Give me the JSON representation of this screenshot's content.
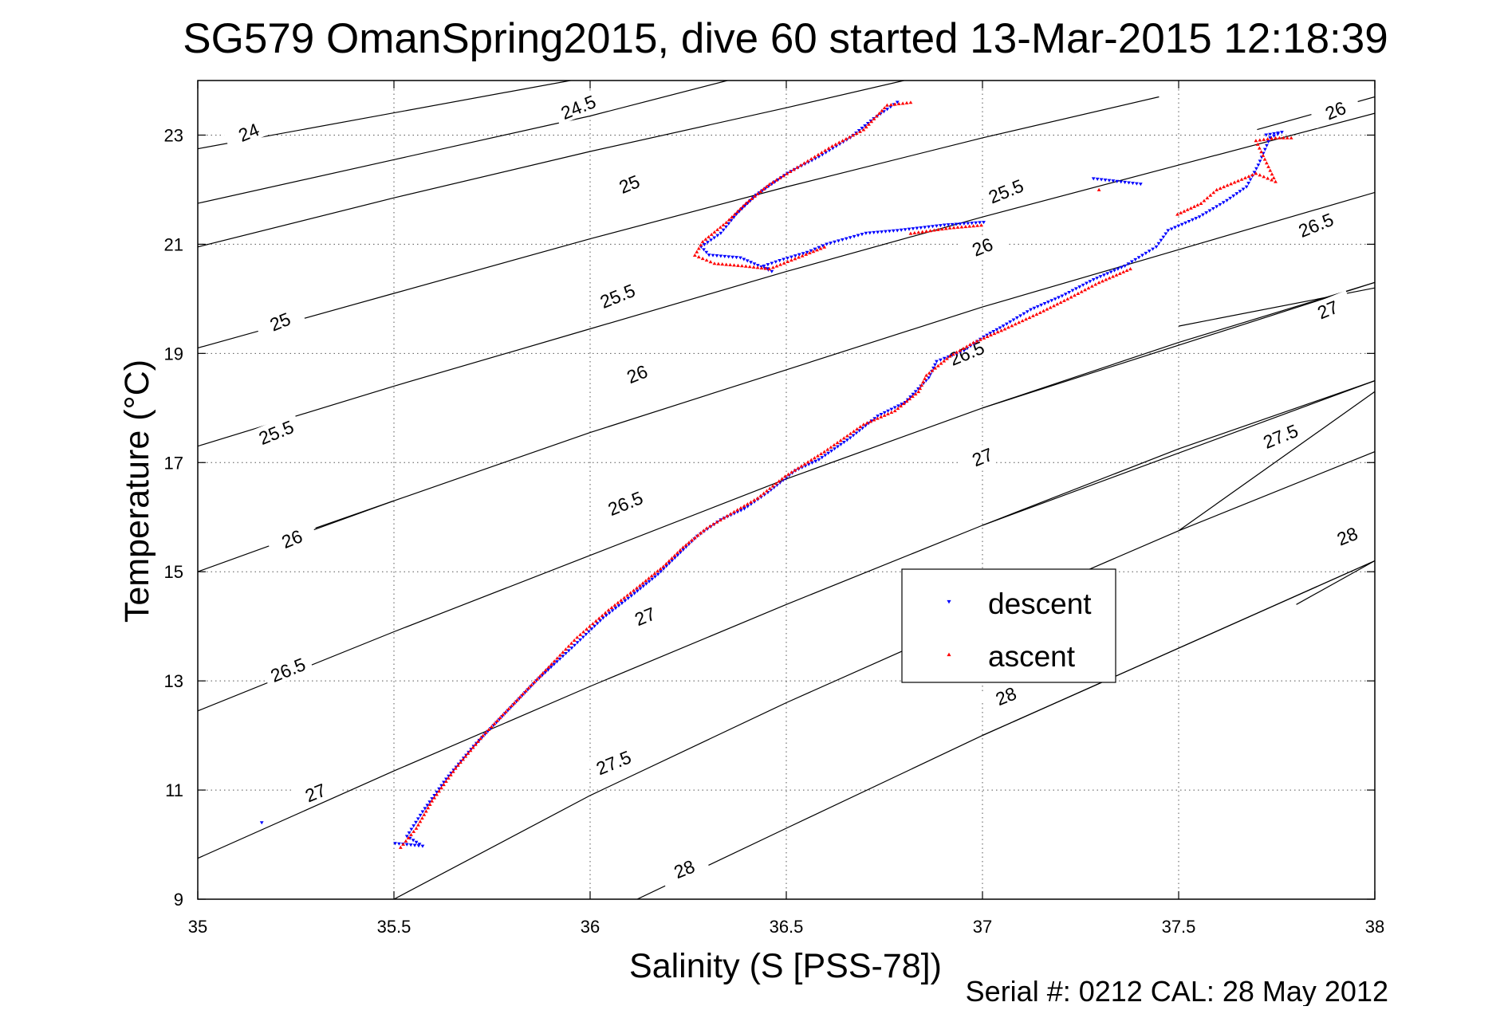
{
  "chart_data": {
    "type": "scatter",
    "title": "SG579 OmanSpring2015, dive 60 started 13-Mar-2015 12:18:39",
    "xlabel": "Salinity (S [PSS-78])",
    "ylabel": "Temperature (°C)",
    "footer": "Serial #: 0212  CAL: 28 May 2012",
    "xlim": [
      35,
      38
    ],
    "ylim": [
      9,
      24
    ],
    "x_ticks": [
      35,
      35.5,
      36,
      36.5,
      37,
      37.5,
      38
    ],
    "x_tick_labels": [
      "35",
      "35.5",
      "36",
      "36.5",
      "37",
      "37.5",
      "38"
    ],
    "y_ticks": [
      9,
      11,
      13,
      15,
      17,
      19,
      21,
      23
    ],
    "y_tick_labels": [
      "9",
      "11",
      "13",
      "15",
      "17",
      "19",
      "21",
      "23"
    ],
    "grid": true,
    "legend_position": "center-right",
    "density_contours": {
      "color": "#000000",
      "lines": [
        {
          "label": "24",
          "points": [
            [
              35.0,
              22.75
            ],
            [
              35.95,
              24.0
            ]
          ],
          "label_at": [
            35.13,
            23.05
          ]
        },
        {
          "label": "24.5",
          "points": [
            [
              35.0,
              21.75
            ],
            [
              35.5,
              22.55
            ],
            [
              36.0,
              23.35
            ],
            [
              36.35,
              24.0
            ]
          ],
          "label_at": [
            35.97,
            23.51
          ]
        },
        {
          "label": "25",
          "points": [
            [
              35.0,
              20.95
            ],
            [
              35.5,
              21.85
            ],
            [
              36.0,
              22.7
            ],
            [
              36.5,
              23.5
            ],
            [
              36.8,
              24.0
            ]
          ],
          "label_at": [
            36.1,
            22.1
          ]
        },
        {
          "label": "25",
          "points": [
            [
              35.0,
              19.1
            ],
            [
              35.5,
              20.1
            ],
            [
              36.0,
              21.1
            ],
            [
              36.5,
              22.05
            ],
            [
              37.0,
              22.95
            ],
            [
              37.45,
              23.7
            ]
          ],
          "label_at": [
            35.21,
            19.58
          ]
        },
        {
          "label": "25.5",
          "points": [
            [
              35.0,
              17.3
            ],
            [
              35.5,
              18.4
            ],
            [
              36.0,
              19.45
            ],
            [
              36.5,
              20.5
            ],
            [
              37.0,
              21.5
            ],
            [
              37.5,
              22.45
            ],
            [
              38.0,
              23.4
            ]
          ],
          "label_at": [
            36.07,
            20.05
          ]
        },
        {
          "label": "25.5",
          "points": [
            [
              35.0,
              17.3
            ],
            [
              35.5,
              18.4
            ],
            [
              36.0,
              19.45
            ],
            [
              36.5,
              20.5
            ],
            [
              37.0,
              21.5
            ],
            [
              37.5,
              22.45
            ],
            [
              38.0,
              23.4
            ]
          ],
          "label_at": [
            37.06,
            21.97
          ]
        },
        {
          "label": "25.5",
          "points": [
            [
              35.0,
              17.3
            ],
            [
              35.5,
              18.4
            ],
            [
              36.0,
              19.45
            ],
            [
              36.5,
              20.5
            ],
            [
              37.0,
              21.5
            ],
            [
              37.5,
              22.45
            ],
            [
              38.0,
              23.4
            ]
          ],
          "label_at": [
            35.2,
            17.55
          ]
        },
        {
          "label": "26",
          "points": [
            [
              35.0,
              15.0
            ],
            [
              35.5,
              16.3
            ],
            [
              36.0,
              17.55
            ],
            [
              36.5,
              18.7
            ],
            [
              37.0,
              19.85
            ],
            [
              37.5,
              20.9
            ],
            [
              38.0,
              21.95
            ]
          ],
          "label_at": [
            36.12,
            18.62
          ]
        },
        {
          "label": "26",
          "points": [
            [
              35.0,
              15.0
            ],
            [
              35.5,
              16.3
            ],
            [
              36.0,
              17.55
            ],
            [
              36.5,
              18.7
            ],
            [
              37.0,
              19.85
            ],
            [
              37.5,
              20.9
            ],
            [
              38.0,
              21.95
            ]
          ],
          "label_at": [
            35.24,
            15.6
          ]
        },
        {
          "label": "26",
          "points": [
            [
              35.3,
              15.8
            ],
            [
              35.5,
              16.3
            ]
          ],
          "label_at": [
            37.0,
            20.95
          ]
        },
        {
          "label": "26",
          "points": [
            [
              37.7,
              23.1
            ],
            [
              38.0,
              23.7
            ]
          ],
          "label_at": [
            37.9,
            23.45
          ]
        },
        {
          "label": "26.5",
          "points": [
            [
              35.0,
              12.45
            ],
            [
              35.5,
              13.9
            ],
            [
              36.0,
              15.3
            ],
            [
              36.5,
              16.7
            ],
            [
              37.0,
              18.0
            ],
            [
              37.5,
              19.2
            ],
            [
              38.0,
              20.3
            ]
          ],
          "label_at": [
            36.09,
            16.25
          ]
        },
        {
          "label": "26.5",
          "points": [
            [
              35.0,
              12.45
            ],
            [
              35.5,
              13.9
            ],
            [
              36.0,
              15.3
            ],
            [
              36.5,
              16.7
            ],
            [
              37.0,
              18.0
            ],
            [
              37.5,
              19.2
            ],
            [
              38.0,
              20.3
            ]
          ],
          "label_at": [
            35.23,
            13.2
          ]
        },
        {
          "label": "26.5",
          "points": [
            [
              35.0,
              12.45
            ],
            [
              35.5,
              13.9
            ],
            [
              36.0,
              15.3
            ],
            [
              36.5,
              16.7
            ],
            [
              37.0,
              18.0
            ],
            [
              37.5,
              19.2
            ],
            [
              38.0,
              20.3
            ]
          ],
          "label_at": [
            36.96,
            19.0
          ]
        },
        {
          "label": "26.5",
          "points": [
            [
              37.0,
              18.0
            ],
            [
              38.0,
              20.3
            ]
          ],
          "label_at": [
            37.85,
            21.35
          ]
        },
        {
          "label": "27",
          "points": [
            [
              35.0,
              9.75
            ],
            [
              35.5,
              11.35
            ],
            [
              36.0,
              12.9
            ],
            [
              36.5,
              14.4
            ],
            [
              37.0,
              15.85
            ],
            [
              37.5,
              17.25
            ],
            [
              38.0,
              18.5
            ]
          ],
          "label_at": [
            35.3,
            10.95
          ]
        },
        {
          "label": "27",
          "points": [
            [
              35.0,
              9.75
            ],
            [
              35.5,
              11.35
            ],
            [
              36.0,
              12.9
            ],
            [
              36.5,
              14.4
            ],
            [
              37.0,
              15.85
            ],
            [
              37.5,
              17.25
            ],
            [
              38.0,
              18.5
            ]
          ],
          "label_at": [
            36.14,
            14.18
          ]
        },
        {
          "label": "27",
          "points": [
            [
              37.0,
              15.85
            ],
            [
              38.0,
              18.5
            ]
          ],
          "label_at": [
            37.0,
            17.1
          ]
        },
        {
          "label": "27",
          "points": [
            [
              37.5,
              19.5
            ],
            [
              38.0,
              20.2
            ]
          ],
          "label_at": [
            37.88,
            19.8
          ]
        },
        {
          "label": "27.5",
          "points": [
            [
              35.5,
              9.0
            ],
            [
              36.0,
              10.9
            ],
            [
              36.5,
              12.6
            ],
            [
              37.0,
              14.2
            ],
            [
              37.5,
              15.75
            ],
            [
              38.0,
              17.2
            ]
          ],
          "label_at": [
            36.06,
            11.5
          ]
        },
        {
          "label": "27.5",
          "points": [
            [
              37.5,
              15.75
            ],
            [
              38.0,
              18.3
            ]
          ],
          "label_at": [
            37.76,
            17.48
          ]
        },
        {
          "label": "28",
          "points": [
            [
              36.12,
              9.0
            ],
            [
              36.5,
              10.3
            ],
            [
              37.0,
              12.0
            ],
            [
              37.5,
              13.6
            ],
            [
              38.0,
              15.2
            ]
          ],
          "label_at": [
            36.24,
            9.55
          ]
        },
        {
          "label": "28",
          "points": [
            [
              37.0,
              12.0
            ],
            [
              38.0,
              15.2
            ]
          ],
          "label_at": [
            37.06,
            12.72
          ]
        },
        {
          "label": "28",
          "points": [
            [
              37.8,
              14.4
            ],
            [
              38.0,
              15.2
            ]
          ],
          "label_at": [
            37.93,
            15.65
          ]
        }
      ]
    },
    "series": [
      {
        "name": "descent",
        "color": "#0000ff",
        "marker": "triangle-down",
        "points": [
          [
            35.16,
            10.4
          ],
          [
            35.5,
            10.02
          ],
          [
            35.53,
            10.0
          ],
          [
            35.57,
            9.97
          ],
          [
            35.53,
            10.15
          ],
          [
            35.57,
            10.6
          ],
          [
            35.63,
            11.2
          ],
          [
            35.7,
            11.8
          ],
          [
            35.78,
            12.4
          ],
          [
            35.86,
            13.0
          ],
          [
            35.95,
            13.6
          ],
          [
            36.03,
            14.15
          ],
          [
            36.11,
            14.6
          ],
          [
            36.17,
            14.95
          ],
          [
            36.22,
            15.3
          ],
          [
            36.27,
            15.65
          ],
          [
            36.33,
            15.95
          ],
          [
            36.39,
            16.15
          ],
          [
            36.45,
            16.45
          ],
          [
            36.52,
            16.85
          ],
          [
            36.58,
            17.05
          ],
          [
            36.66,
            17.45
          ],
          [
            36.73,
            17.85
          ],
          [
            36.8,
            18.1
          ],
          [
            36.86,
            18.55
          ],
          [
            36.88,
            18.85
          ],
          [
            36.95,
            19.05
          ],
          [
            37.0,
            19.3
          ],
          [
            37.05,
            19.5
          ],
          [
            37.12,
            19.8
          ],
          [
            37.2,
            20.05
          ],
          [
            37.28,
            20.35
          ],
          [
            37.36,
            20.6
          ],
          [
            37.44,
            20.95
          ],
          [
            37.47,
            21.25
          ],
          [
            37.55,
            21.5
          ],
          [
            37.62,
            21.8
          ],
          [
            37.67,
            22.05
          ],
          [
            37.7,
            22.45
          ],
          [
            37.73,
            22.95
          ],
          [
            37.76,
            23.05
          ],
          [
            37.72,
            23.0
          ],
          [
            37.4,
            22.1
          ],
          [
            37.34,
            22.15
          ],
          [
            37.28,
            22.2
          ],
          [
            37.0,
            21.4
          ],
          [
            36.9,
            21.35
          ],
          [
            36.78,
            21.25
          ],
          [
            36.7,
            21.2
          ],
          [
            36.6,
            21.0
          ],
          [
            36.55,
            20.85
          ],
          [
            36.48,
            20.7
          ],
          [
            36.44,
            20.6
          ],
          [
            36.46,
            20.5
          ],
          [
            36.38,
            20.75
          ],
          [
            36.3,
            20.8
          ],
          [
            36.28,
            20.95
          ],
          [
            36.33,
            21.2
          ],
          [
            36.37,
            21.55
          ],
          [
            36.42,
            21.9
          ],
          [
            36.5,
            22.3
          ],
          [
            36.58,
            22.6
          ],
          [
            36.66,
            22.95
          ],
          [
            36.72,
            23.3
          ],
          [
            36.78,
            23.6
          ]
        ]
      },
      {
        "name": "ascent",
        "color": "#ff0000",
        "marker": "triangle-up",
        "points": [
          [
            35.52,
            9.95
          ],
          [
            35.56,
            10.3
          ],
          [
            35.6,
            10.8
          ],
          [
            35.66,
            11.4
          ],
          [
            35.73,
            12.0
          ],
          [
            35.81,
            12.6
          ],
          [
            35.89,
            13.2
          ],
          [
            35.97,
            13.8
          ],
          [
            36.05,
            14.3
          ],
          [
            36.13,
            14.75
          ],
          [
            36.19,
            15.1
          ],
          [
            36.24,
            15.45
          ],
          [
            36.3,
            15.8
          ],
          [
            36.37,
            16.1
          ],
          [
            36.43,
            16.35
          ],
          [
            36.5,
            16.75
          ],
          [
            36.6,
            17.2
          ],
          [
            36.7,
            17.7
          ],
          [
            36.78,
            17.95
          ],
          [
            36.84,
            18.3
          ],
          [
            36.86,
            18.6
          ],
          [
            36.92,
            18.95
          ],
          [
            36.98,
            19.2
          ],
          [
            37.06,
            19.45
          ],
          [
            37.15,
            19.75
          ],
          [
            37.22,
            20.0
          ],
          [
            37.3,
            20.3
          ],
          [
            37.38,
            20.55
          ],
          [
            37.5,
            21.55
          ],
          [
            37.56,
            21.75
          ],
          [
            37.6,
            22.0
          ],
          [
            37.7,
            22.3
          ],
          [
            37.75,
            22.15
          ],
          [
            37.7,
            22.9
          ],
          [
            37.75,
            22.95
          ],
          [
            37.79,
            22.95
          ],
          [
            37.3,
            22.0
          ],
          [
            37.0,
            21.35
          ],
          [
            36.92,
            21.3
          ],
          [
            36.82,
            21.2
          ],
          [
            36.6,
            20.95
          ],
          [
            36.46,
            20.55
          ],
          [
            36.4,
            20.6
          ],
          [
            36.32,
            20.65
          ],
          [
            36.27,
            20.8
          ],
          [
            36.29,
            21.05
          ],
          [
            36.35,
            21.4
          ],
          [
            36.4,
            21.75
          ],
          [
            36.46,
            22.1
          ],
          [
            36.54,
            22.45
          ],
          [
            36.62,
            22.8
          ],
          [
            36.7,
            23.1
          ],
          [
            36.76,
            23.55
          ],
          [
            36.82,
            23.6
          ]
        ]
      }
    ]
  }
}
